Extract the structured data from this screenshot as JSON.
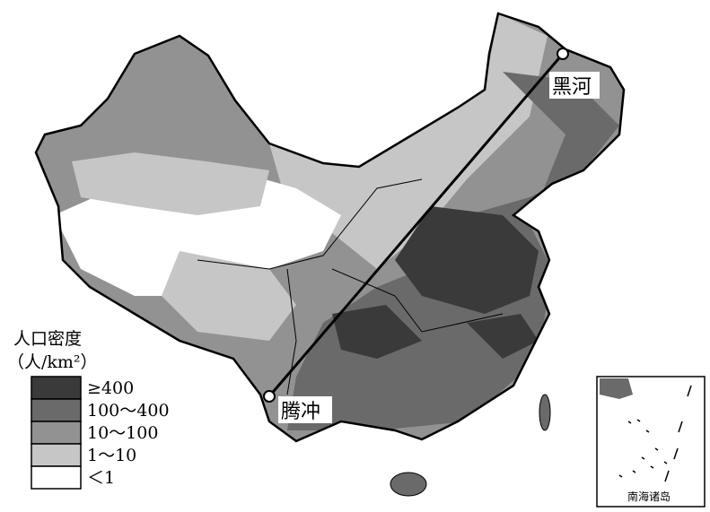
{
  "map": {
    "cities": [
      {
        "label": "黑河"
      },
      {
        "label": "腾冲"
      }
    ],
    "legend": {
      "title": "人口密度",
      "unit": "（人/km²）",
      "items": [
        {
          "label": "≥400",
          "color": "#3a3a3a"
        },
        {
          "label": "100～400",
          "color": "#6a6a6a"
        },
        {
          "label": "10～100",
          "color": "#929292"
        },
        {
          "label": "1～10",
          "color": "#c6c6c6"
        },
        {
          "label": "＜1",
          "color": "#ffffff"
        }
      ]
    },
    "inset": {
      "label": "南海诸岛"
    }
  }
}
